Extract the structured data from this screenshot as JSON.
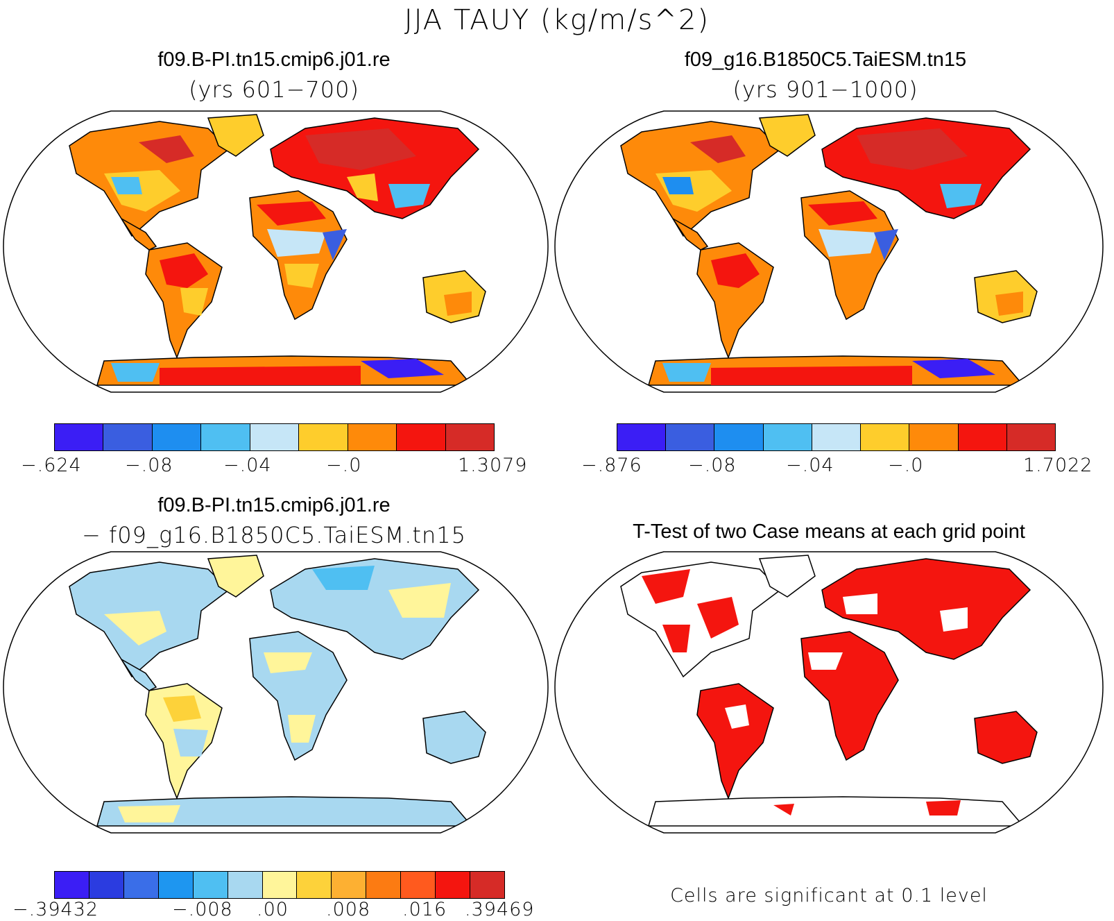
{
  "title": "JJA TAUY (kg/m/s^2)",
  "panels": [
    {
      "title": "f09.B-PI.tn15.cmip6.j01.re",
      "subtitle": "(yrs 601−700)"
    },
    {
      "title": "f09_g16.B1850C5.TaiESM.tn15",
      "subtitle": "(yrs 901−1000)"
    },
    {
      "title": "f09.B-PI.tn15.cmip6.j01.re",
      "subtitle": "− f09_g16.B1850C5.TaiESM.tn15"
    },
    {
      "title": "T-Test of two Case means at each grid point",
      "note": "Cells are significant at 0.1 level"
    }
  ],
  "colorbars": [
    {
      "colors": [
        "#3b1ef5",
        "#3a5ee0",
        "#1e8ef0",
        "#4fbff2",
        "#c6e6f7",
        "#fecd2c",
        "#fe8a0a",
        "#f4150f",
        "#d62b27"
      ],
      "labels": [
        "−.624",
        "−.08",
        "−.04",
        "−.0",
        "1.3079"
      ]
    },
    {
      "colors": [
        "#3b1ef5",
        "#3a5ee0",
        "#1e8ef0",
        "#4fbff2",
        "#c6e6f7",
        "#fecd2c",
        "#fe8a0a",
        "#f4150f",
        "#d62b27"
      ],
      "labels": [
        "−.876",
        "−.08",
        "−.04",
        "−.0",
        "1.7022"
      ]
    },
    {
      "colors": [
        "#3b1ef5",
        "#2b3ce0",
        "#3a6ee8",
        "#1e96f0",
        "#4fbff2",
        "#a8d8f0",
        "#fff59a",
        "#fdd23a",
        "#fdb032",
        "#fc7b12",
        "#ff5a1e",
        "#f4150f",
        "#d62b27"
      ],
      "labels": [
        "−.39432",
        "−.008",
        ".00",
        ".008",
        ".016",
        ".39469"
      ]
    }
  ]
}
